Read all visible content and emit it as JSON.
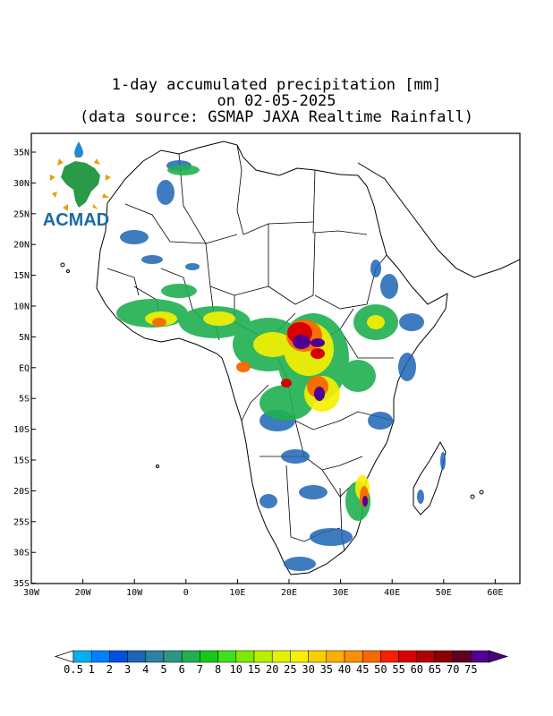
{
  "title": {
    "line1": "1-day accumulated precipitation [mm]",
    "line2": "on 02-05-2025",
    "line3": "(data source: GSMAP JAXA Realtime Rainfall)"
  },
  "logo": {
    "text": "ACMAD"
  },
  "axes": {
    "lat_labels": [
      "35N",
      "30N",
      "25N",
      "20N",
      "15N",
      "10N",
      "5N",
      "EQ",
      "5S",
      "10S",
      "15S",
      "20S",
      "25S",
      "30S",
      "35S"
    ],
    "lon_labels": [
      "30W",
      "20W",
      "10W",
      "0",
      "10E",
      "20E",
      "30E",
      "40E",
      "50E",
      "60E"
    ]
  },
  "colorbar": {
    "labels": [
      "0.5",
      "1",
      "2",
      "3",
      "4",
      "5",
      "6",
      "7",
      "8",
      "10",
      "15",
      "20",
      "25",
      "30",
      "35",
      "40",
      "45",
      "50",
      "55",
      "60",
      "65",
      "70",
      "75"
    ],
    "colors": [
      "#00b0f0",
      "#0080ff",
      "#0050e0",
      "#1e64b4",
      "#2d82a0",
      "#2d9682",
      "#20b050",
      "#18c818",
      "#40e020",
      "#80e800",
      "#b8f000",
      "#e0f400",
      "#f8f000",
      "#f8d000",
      "#f8b000",
      "#f89000",
      "#f86800",
      "#f82000",
      "#d80000",
      "#b00000",
      "#880000",
      "#600020",
      "#500090"
    ],
    "left_arrow_color": "#ffffff",
    "right_arrow_color": "#4b0082"
  }
}
